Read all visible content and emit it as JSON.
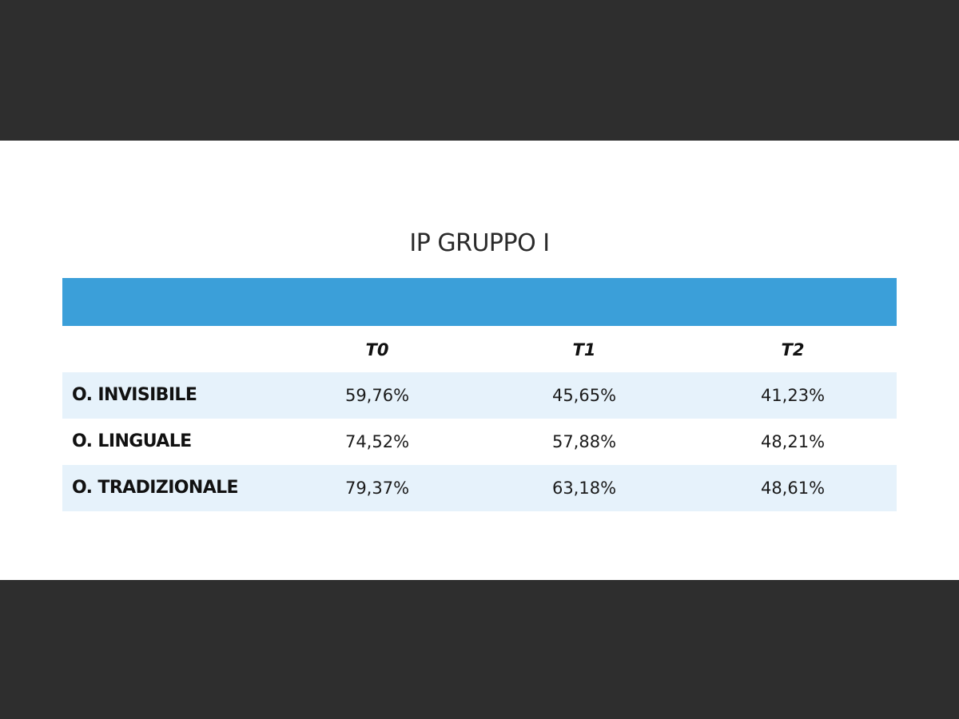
{
  "chart_data": {
    "type": "table",
    "title": "IP GRUPPO I",
    "columns": [
      "T0",
      "T1",
      "T2"
    ],
    "rows": [
      {
        "label": "O. INVISIBILE",
        "values": [
          "59,76%",
          "45,65%",
          "41,23%"
        ]
      },
      {
        "label": "O. LINGUALE",
        "values": [
          "74,52%",
          "57,88%",
          "48,21%"
        ]
      },
      {
        "label": "O. TRADIZIONALE",
        "values": [
          "79,37%",
          "63,18%",
          "48,61%"
        ]
      }
    ],
    "header_color": "#3b9fd9",
    "stripe_color": "#e6f2fb"
  }
}
